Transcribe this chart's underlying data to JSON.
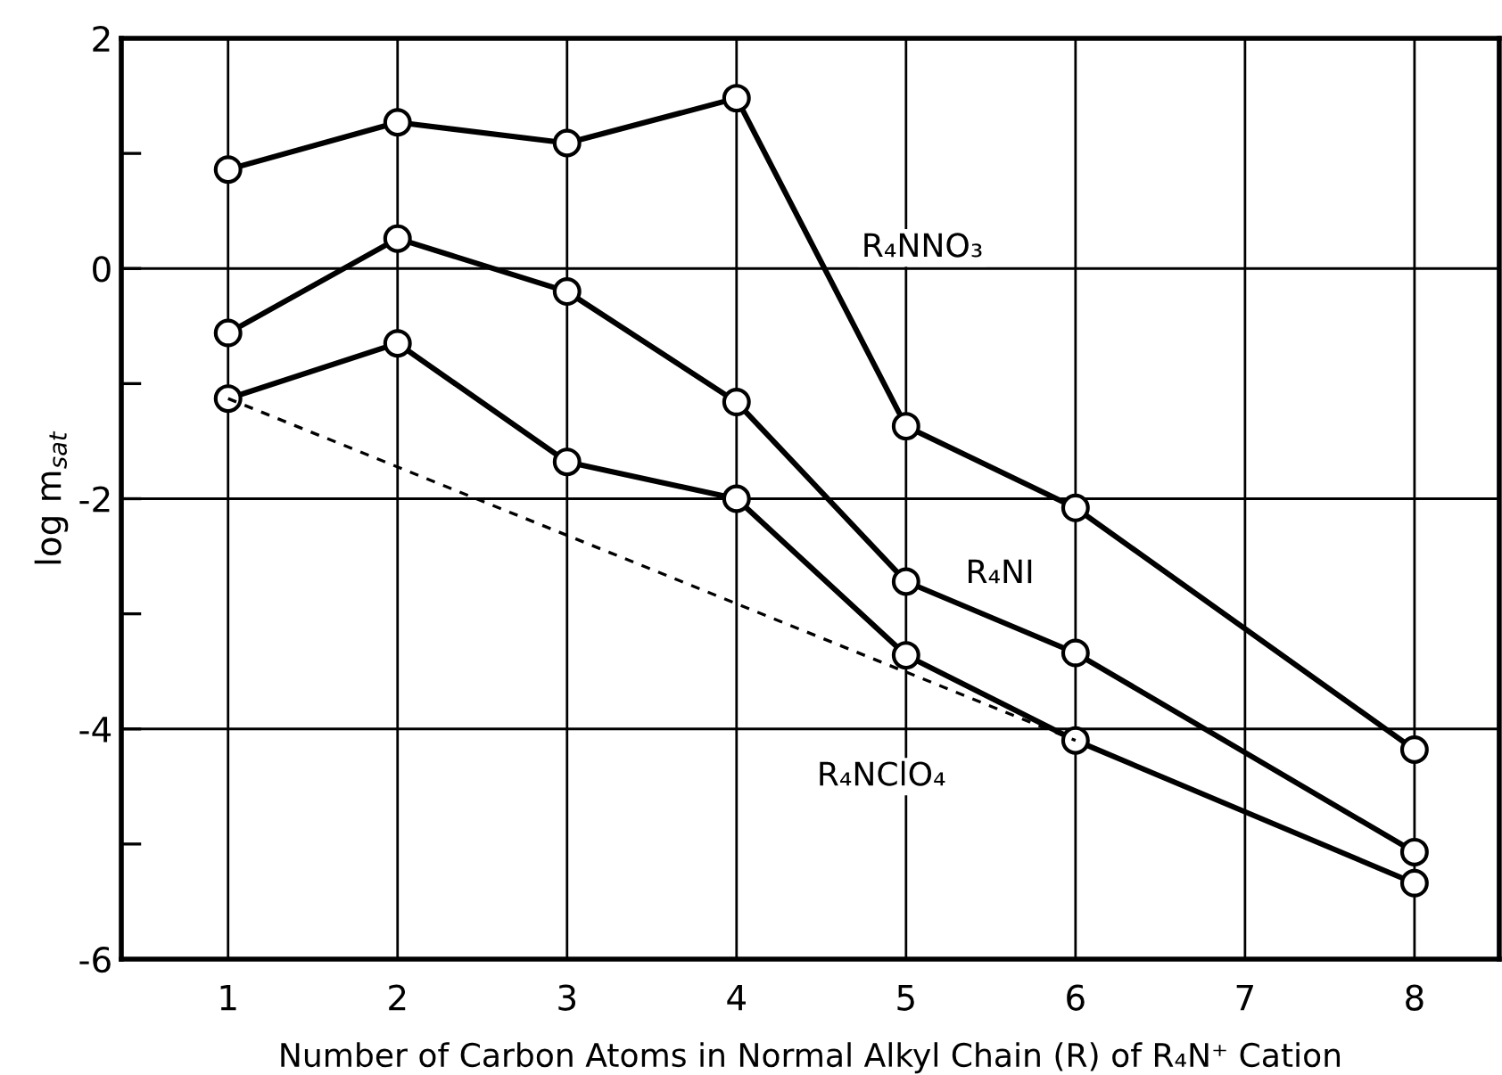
{
  "chart_data": {
    "type": "line",
    "xlabel": "Number of Carbon Atoms in Normal Alkyl Chain (R) of R₄N⁺ Cation",
    "ylabel": "log m$_{sat}$",
    "xlim": [
      0.37,
      8.5
    ],
    "xticks": [
      1,
      2,
      3,
      4,
      5,
      6,
      7,
      8
    ],
    "ylim": [
      -6,
      2
    ],
    "yticks": [
      2,
      {
        "value": 1,
        "label": null
      },
      0,
      {
        "value": -1,
        "label": null
      },
      -2,
      {
        "value": -3,
        "label": null
      },
      -4,
      {
        "value": -5,
        "label": null
      },
      -6
    ],
    "grid": true,
    "marker": "circle",
    "line_style": "solid",
    "legend": false,
    "series": [
      {
        "name": "R₄NNO₃",
        "color": "#000000",
        "x": [
          1,
          2,
          3,
          4,
          5,
          6,
          8
        ],
        "values": [
          0.86,
          1.27,
          1.09,
          1.48,
          -1.37,
          -2.08,
          -4.18
        ]
      },
      {
        "name": "R₄NI",
        "color": "#000000",
        "x": [
          1,
          2,
          3,
          4,
          5,
          6,
          8
        ],
        "values": [
          -0.56,
          0.26,
          -0.2,
          -1.16,
          -2.72,
          -3.34,
          -5.07
        ]
      },
      {
        "name": "R₄NClO₄",
        "color": "#000000",
        "x": [
          1,
          2,
          3,
          4,
          5,
          6,
          8
        ],
        "values": [
          -1.13,
          -0.65,
          -1.68,
          -2.0,
          -3.36,
          -4.1,
          -5.34
        ]
      },
      {
        "color": "#000000",
        "x": [
          1,
          6
        ],
        "values": [
          -1.13,
          -4.1
        ],
        "marker": "none",
        "line_style": "dashed"
      }
    ]
  }
}
